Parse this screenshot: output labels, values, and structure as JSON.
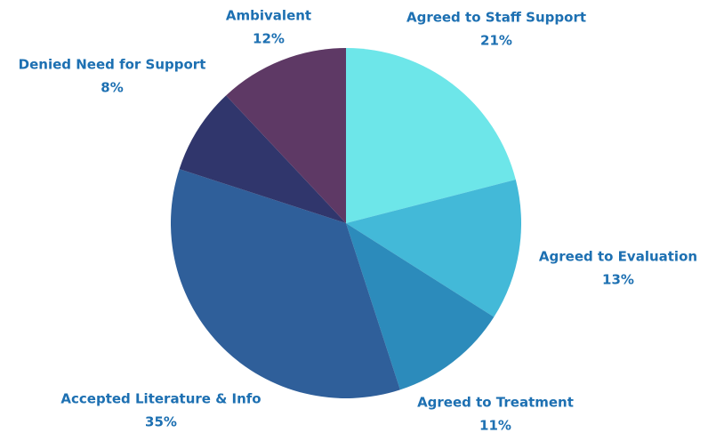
{
  "chart_data": {
    "type": "pie",
    "categories": [
      "Agreed to Staff Support",
      "Agreed to Evaluation",
      "Agreed to Treatment",
      "Accepted Literature & Info",
      "Denied Need for Support",
      "Ambivalent"
    ],
    "values": [
      21,
      13,
      11,
      35,
      8,
      12
    ],
    "value_labels": [
      "21%",
      "13%",
      "11%",
      "35%",
      "8%",
      "12%"
    ],
    "colors": [
      "#6de6e9",
      "#43b9d8",
      "#2c8bbb",
      "#2f5f9a",
      "#30366c",
      "#5e3965"
    ]
  }
}
